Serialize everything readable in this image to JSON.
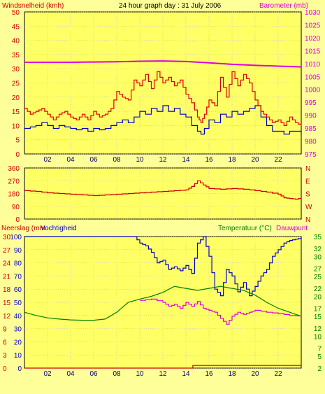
{
  "header": {
    "left_label": "Windsnelheid (kmh)",
    "title": "24 hour graph day : 31 July 2006",
    "right_label": "Barometer (mb)"
  },
  "colors": {
    "background": "#ffff99",
    "plot_bg": "#ffff66",
    "wind_avg": "#0000cc",
    "wind_gust": "#dd0000",
    "barometer": "#dd00dd",
    "direction": "#cc0000",
    "humidity": "#0000cc",
    "temperature": "#008000",
    "dewpoint": "#dd00dd",
    "rain": "#cc0000",
    "grid": "#bbbbbb"
  },
  "chart_data": [
    {
      "type": "line",
      "name": "wind-barometer",
      "ylabel_left": "Windsnelheid (kmh)",
      "ylabel_right": "Barometer (mb)",
      "left_ticks": [
        "0",
        "5",
        "10",
        "15",
        "20",
        "25",
        "30",
        "35",
        "40",
        "45",
        "50"
      ],
      "right_ticks": [
        "975",
        "980",
        "985",
        "990",
        "995",
        "1000",
        "1005",
        "1010",
        "1015",
        "1020",
        "1025",
        "1030"
      ],
      "x_ticks": [
        "02",
        "04",
        "06",
        "08",
        "10",
        "12",
        "14",
        "16",
        "18",
        "20",
        "22"
      ],
      "ylim_left": [
        0,
        50
      ],
      "ylim_right": [
        975,
        1030
      ],
      "xlim": [
        0,
        24
      ],
      "series": [
        {
          "key": "wind_avg",
          "axis": "left",
          "x": [
            0,
            0.5,
            1,
            1.5,
            2,
            2.5,
            3,
            3.5,
            4,
            4.5,
            5,
            5.5,
            6,
            6.5,
            7,
            7.5,
            8,
            8.5,
            9,
            9.5,
            10,
            10.5,
            11,
            11.5,
            12,
            12.5,
            13,
            13.5,
            14,
            14.5,
            15,
            15.3,
            15.6,
            16,
            16.5,
            17,
            17.5,
            18,
            18.5,
            19,
            19.5,
            20,
            20.5,
            21,
            21.5,
            22,
            22.5,
            23,
            23.5,
            24
          ],
          "y": [
            9,
            9.5,
            10,
            11,
            10,
            9,
            10,
            9.5,
            9,
            8.5,
            9,
            8,
            9,
            8.5,
            9,
            10,
            11,
            12,
            11,
            13,
            15,
            14,
            16,
            15,
            17,
            15,
            16,
            14,
            13,
            10,
            8,
            7,
            9,
            12,
            11,
            14,
            13,
            15,
            14,
            15,
            16,
            17,
            13,
            10,
            8,
            8,
            7,
            8,
            8,
            7
          ]
        },
        {
          "key": "wind_gust",
          "axis": "left",
          "x": [
            0,
            0.5,
            1,
            1.5,
            2,
            2.5,
            3,
            3.5,
            4,
            4.5,
            5,
            5.5,
            6,
            6.5,
            7,
            7.5,
            8,
            8.5,
            9,
            9.5,
            10,
            10.5,
            11,
            11.5,
            12,
            12.5,
            13,
            13.5,
            14,
            14.5,
            15,
            15.3,
            15.6,
            16,
            16.5,
            17,
            17.5,
            18,
            18.5,
            19,
            19.5,
            20,
            20.5,
            21,
            21.5,
            22,
            22.5,
            23,
            23.5,
            24
          ],
          "y": [
            16,
            14,
            15,
            16,
            14,
            12,
            14,
            15,
            13,
            12,
            14,
            12,
            15,
            13,
            14,
            16,
            22,
            20,
            19,
            26,
            24,
            28,
            23,
            29,
            25,
            27,
            24,
            26,
            21,
            18,
            13,
            11,
            14,
            19,
            17,
            27,
            20,
            29,
            24,
            28,
            25,
            19,
            15,
            13,
            11,
            12,
            10,
            13,
            11,
            10
          ]
        },
        {
          "key": "barometer",
          "axis": "right",
          "x": [
            0,
            2,
            4,
            6,
            8,
            10,
            12,
            14,
            16,
            18,
            20,
            22,
            24
          ],
          "y": [
            1010.5,
            1010.5,
            1010.5,
            1010.6,
            1010.7,
            1010.9,
            1011,
            1010.8,
            1010.3,
            1009.7,
            1009.3,
            1009.0,
            1008.7
          ]
        }
      ]
    },
    {
      "type": "line",
      "name": "wind-direction",
      "left_ticks": [
        "0",
        "90",
        "180",
        "270",
        "360"
      ],
      "right_ticks": [
        "W",
        "S",
        "E",
        "N"
      ],
      "ylim": [
        0,
        360
      ],
      "xlim": [
        0,
        24
      ],
      "series": [
        {
          "key": "direction",
          "x": [
            0,
            1,
            2,
            3,
            4,
            5,
            6,
            7,
            8,
            9,
            10,
            11,
            12,
            13,
            14,
            14.5,
            15,
            15.5,
            16,
            17,
            18,
            19,
            20,
            21,
            22,
            22.5,
            23,
            23.5,
            24
          ],
          "y": [
            200,
            195,
            185,
            180,
            175,
            170,
            165,
            170,
            175,
            180,
            185,
            190,
            195,
            200,
            205,
            230,
            270,
            240,
            215,
            210,
            215,
            210,
            200,
            190,
            175,
            150,
            145,
            140,
            150
          ]
        }
      ]
    },
    {
      "type": "line",
      "name": "humidity-temp-rain",
      "ylabel_left_1": "Neerslag (mm",
      "ylabel_left_2": "Vochtigheid",
      "ylabel_right_1": "Temperatuur (°C)",
      "ylabel_right_2": "Dauwpunt",
      "rain_ticks": [
        "0",
        "3",
        "6",
        "9",
        "12",
        "15",
        "18",
        "21",
        "24",
        "27",
        "30"
      ],
      "hum_ticks": [
        "0",
        "10",
        "20",
        "30",
        "40",
        "50",
        "60",
        "70",
        "80",
        "90",
        "100"
      ],
      "temp_ticks": [
        "2",
        "5",
        "7",
        "10",
        "12",
        "15",
        "17",
        "20",
        "22",
        "25",
        "27",
        "30",
        "32",
        "35"
      ],
      "xlim": [
        0,
        24
      ],
      "ylim_hum": [
        0,
        100
      ],
      "ylim_temp": [
        2,
        35
      ],
      "ylim_rain": [
        0,
        30
      ],
      "series": [
        {
          "key": "humidity",
          "axis": "hum",
          "x": [
            0,
            2,
            4,
            6,
            8,
            9.5,
            10,
            10.5,
            11,
            11.5,
            12,
            12.5,
            13,
            13.5,
            14,
            14.5,
            15,
            15.5,
            16,
            16.5,
            17,
            17.5,
            18,
            18.5,
            19,
            19.5,
            20,
            20.5,
            21,
            21.5,
            22,
            22.5,
            23,
            23.5,
            24
          ],
          "y": [
            100,
            100,
            100,
            100,
            100,
            100,
            95,
            93,
            88,
            80,
            82,
            75,
            77,
            74,
            78,
            72,
            95,
            100,
            85,
            60,
            55,
            75,
            70,
            58,
            65,
            55,
            62,
            70,
            75,
            85,
            90,
            95,
            97,
            98,
            99
          ]
        },
        {
          "key": "temperature",
          "axis": "temp",
          "x": [
            0,
            1,
            2,
            3,
            4,
            5,
            6,
            7,
            8,
            9,
            10,
            11,
            12,
            13,
            14,
            15,
            16,
            17,
            18,
            19,
            20,
            21,
            22,
            23,
            24
          ],
          "y": [
            16,
            15.2,
            14.6,
            14.3,
            14.1,
            14,
            14,
            14.3,
            16,
            18.5,
            19.3,
            20,
            21,
            22.5,
            22,
            21.5,
            22,
            22.5,
            22,
            21.5,
            20.3,
            18.5,
            17,
            16,
            15
          ]
        },
        {
          "key": "dewpoint",
          "axis": "temp",
          "x": [
            10,
            11,
            12,
            12.5,
            13,
            13.5,
            14,
            14.5,
            15,
            15.5,
            16,
            16.5,
            17,
            17.5,
            18,
            18.5,
            19,
            19.5,
            20,
            21,
            22,
            23,
            24
          ],
          "y": [
            19,
            19.3,
            18.5,
            17.5,
            18,
            17,
            18.5,
            17.5,
            18.7,
            17,
            16.5,
            16,
            14.5,
            13,
            15,
            16,
            15.5,
            16,
            16.5,
            16,
            15.7,
            15.2,
            15
          ]
        },
        {
          "key": "rain",
          "axis": "rain",
          "x": [
            0,
            14.5,
            14.6,
            24
          ],
          "y": [
            0,
            0,
            0.6,
            0.6
          ]
        }
      ]
    }
  ]
}
